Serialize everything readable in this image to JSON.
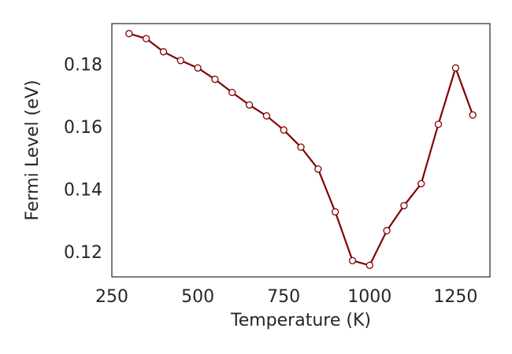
{
  "chart_data": {
    "type": "line",
    "title": "",
    "xlabel": "Temperature (K)",
    "ylabel": "Fermi Level (eV)",
    "xlim": [
      250,
      1350
    ],
    "ylim": [
      0.112,
      0.193
    ],
    "xticks": [
      250,
      500,
      750,
      1000,
      1250
    ],
    "xtick_labels": [
      "250",
      "500",
      "750",
      "1000",
      "1250"
    ],
    "yticks": [
      0.12,
      0.14,
      0.16,
      0.18
    ],
    "ytick_labels": [
      "0.12",
      "0.14",
      "0.16",
      "0.18"
    ],
    "grid": false,
    "series": [
      {
        "color": "#800000",
        "marker": "circle-open",
        "x": [
          300,
          350,
          400,
          450,
          500,
          550,
          600,
          650,
          700,
          750,
          800,
          850,
          900,
          950,
          1000,
          1050,
          1100,
          1150,
          1200,
          1250,
          1300
        ],
        "y": [
          0.1898,
          0.1882,
          0.184,
          0.1812,
          0.1788,
          0.1752,
          0.171,
          0.167,
          0.1635,
          0.159,
          0.1535,
          0.1465,
          0.1328,
          0.1172,
          0.1157,
          0.1268,
          0.1348,
          0.1418,
          0.1608,
          0.1788,
          0.1638
        ]
      }
    ]
  }
}
